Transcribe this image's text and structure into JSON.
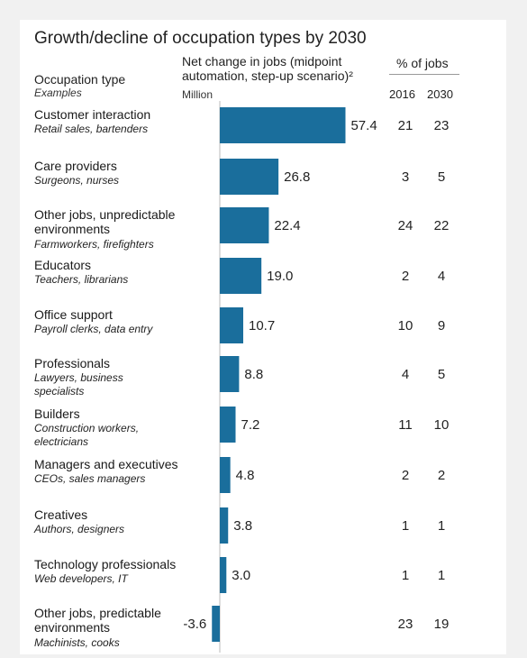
{
  "chart_data": {
    "type": "bar",
    "title": "Growth/decline of occupation types by 2030",
    "headers": {
      "occupation": "Occupation type",
      "examples": "Examples",
      "net_change": "Net change in jobs (midpoint automation, step-up scenario)²",
      "unit": "Million",
      "pct_jobs": "% of jobs",
      "year_2016": "2016",
      "year_2030": "2030"
    },
    "bar_color": "#1a6e9c",
    "rows": [
      {
        "name": "Customer interaction",
        "examples": "Retail sales, bartenders",
        "value": 57.4,
        "label": "57.4",
        "pct2016": "21",
        "pct2030": "23"
      },
      {
        "name": "Care providers",
        "examples": "Surgeons, nurses",
        "value": 26.8,
        "label": "26.8",
        "pct2016": "3",
        "pct2030": "5"
      },
      {
        "name": "Other jobs, unpredictable environments",
        "examples": "Farmworkers, firefighters",
        "value": 22.4,
        "label": "22.4",
        "pct2016": "24",
        "pct2030": "22"
      },
      {
        "name": "Educators",
        "examples": "Teachers, librarians",
        "value": 19.0,
        "label": "19.0",
        "pct2016": "2",
        "pct2030": "4"
      },
      {
        "name": "Office support",
        "examples": "Payroll clerks, data entry",
        "value": 10.7,
        "label": "10.7",
        "pct2016": "10",
        "pct2030": "9"
      },
      {
        "name": "Professionals",
        "examples": "Lawyers, business specialists",
        "value": 8.8,
        "label": "8.8",
        "pct2016": "4",
        "pct2030": "5"
      },
      {
        "name": "Builders",
        "examples": "Construction workers, electricians",
        "value": 7.2,
        "label": "7.2",
        "pct2016": "11",
        "pct2030": "10"
      },
      {
        "name": "Managers and executives",
        "examples": "CEOs, sales managers",
        "value": 4.8,
        "label": "4.8",
        "pct2016": "2",
        "pct2030": "2"
      },
      {
        "name": "Creatives",
        "examples": "Authors, designers",
        "value": 3.8,
        "label": "3.8",
        "pct2016": "1",
        "pct2030": "1"
      },
      {
        "name": "Technology professionals",
        "examples": "Web developers, IT",
        "value": 3.0,
        "label": "3.0",
        "pct2016": "1",
        "pct2030": "1"
      },
      {
        "name": "Other jobs, predictable environments",
        "examples": "Machinists, cooks",
        "value": -3.6,
        "label": "-3.6",
        "pct2016": "23",
        "pct2030": "19"
      }
    ]
  }
}
